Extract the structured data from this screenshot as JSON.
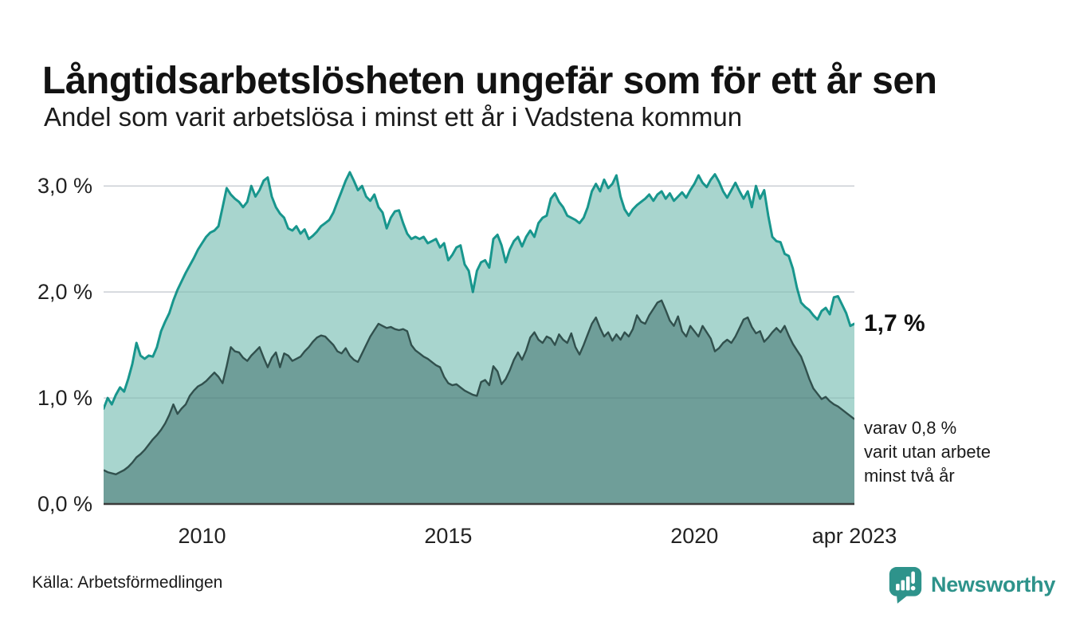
{
  "chart_data": {
    "type": "area",
    "title": "Långtidsarbetslösheten ungefär som för ett år sen",
    "subtitle": "Andel som varit arbetslösa i minst ett år i Vadstena kommun",
    "x_unit": "month",
    "x_start": 2008.0,
    "x_end": 2023.25,
    "y_unit": "%",
    "y_range": [
      0,
      3.25
    ],
    "grid": "horizontal",
    "legend": "none-direct-labels",
    "y_ticks": [
      {
        "label": "0,0 %",
        "value": 0
      },
      {
        "label": "1,0 %",
        "value": 1
      },
      {
        "label": "2,0 %",
        "value": 2
      },
      {
        "label": "3,0 %",
        "value": 3
      }
    ],
    "x_ticks": [
      {
        "label": "2010",
        "value": 2010
      },
      {
        "label": "2015",
        "value": 2015
      },
      {
        "label": "2020",
        "value": 2020
      },
      {
        "label": "apr 2023",
        "value": 2023.25
      }
    ],
    "annotations": {
      "latest_total": "1,7 %",
      "secondary_1": "varav 0,8 %",
      "secondary_2": "varit utan arbete",
      "secondary_3": "minst två år"
    },
    "series": [
      {
        "name": "Andel arbetslösa minst ett år",
        "latest_value": 1.7,
        "line_color": "#18968D",
        "fill_color": "#A8D5CE",
        "line_width": 3,
        "values": [
          0.9,
          1.0,
          0.94,
          1.03,
          1.1,
          1.06,
          1.18,
          1.32,
          1.52,
          1.4,
          1.37,
          1.4,
          1.39,
          1.48,
          1.63,
          1.72,
          1.8,
          1.92,
          2.02,
          2.1,
          2.18,
          2.25,
          2.32,
          2.4,
          2.46,
          2.52,
          2.56,
          2.58,
          2.62,
          2.8,
          2.98,
          2.92,
          2.88,
          2.85,
          2.8,
          2.85,
          3.0,
          2.9,
          2.96,
          3.05,
          3.08,
          2.9,
          2.8,
          2.74,
          2.7,
          2.6,
          2.58,
          2.62,
          2.55,
          2.59,
          2.5,
          2.53,
          2.57,
          2.62,
          2.65,
          2.68,
          2.75,
          2.85,
          2.95,
          3.05,
          3.13,
          3.05,
          2.96,
          3.0,
          2.9,
          2.86,
          2.92,
          2.8,
          2.75,
          2.6,
          2.7,
          2.76,
          2.77,
          2.65,
          2.55,
          2.5,
          2.52,
          2.5,
          2.52,
          2.46,
          2.48,
          2.5,
          2.42,
          2.46,
          2.3,
          2.35,
          2.42,
          2.44,
          2.26,
          2.2,
          2.0,
          2.2,
          2.28,
          2.3,
          2.23,
          2.5,
          2.54,
          2.44,
          2.28,
          2.4,
          2.48,
          2.52,
          2.43,
          2.52,
          2.58,
          2.52,
          2.65,
          2.7,
          2.72,
          2.88,
          2.93,
          2.85,
          2.8,
          2.72,
          2.7,
          2.68,
          2.65,
          2.7,
          2.8,
          2.95,
          3.02,
          2.95,
          3.06,
          2.98,
          3.02,
          3.1,
          2.9,
          2.78,
          2.72,
          2.78,
          2.82,
          2.85,
          2.88,
          2.92,
          2.86,
          2.92,
          2.95,
          2.88,
          2.93,
          2.86,
          2.9,
          2.94,
          2.89,
          2.96,
          3.02,
          3.1,
          3.03,
          2.99,
          3.06,
          3.11,
          3.04,
          2.95,
          2.89,
          2.96,
          3.03,
          2.95,
          2.88,
          2.95,
          2.8,
          3.0,
          2.88,
          2.96,
          2.72,
          2.52,
          2.48,
          2.47,
          2.36,
          2.34,
          2.22,
          2.04,
          1.9,
          1.86,
          1.83,
          1.78,
          1.74,
          1.82,
          1.85,
          1.79,
          1.95,
          1.96,
          1.88,
          1.8,
          1.68,
          1.7
        ]
      },
      {
        "name": "Andel arbetslösa minst två år",
        "latest_value": 0.8,
        "line_color": "#31504D",
        "fill_color": "#6F9E99",
        "line_width": 2.4,
        "values": [
          0.32,
          0.3,
          0.29,
          0.28,
          0.3,
          0.32,
          0.35,
          0.39,
          0.44,
          0.47,
          0.51,
          0.56,
          0.61,
          0.65,
          0.7,
          0.76,
          0.84,
          0.94,
          0.85,
          0.9,
          0.94,
          1.02,
          1.07,
          1.11,
          1.13,
          1.16,
          1.2,
          1.24,
          1.2,
          1.14,
          1.3,
          1.48,
          1.44,
          1.43,
          1.38,
          1.35,
          1.4,
          1.44,
          1.48,
          1.38,
          1.29,
          1.38,
          1.43,
          1.29,
          1.42,
          1.4,
          1.35,
          1.37,
          1.39,
          1.44,
          1.48,
          1.53,
          1.57,
          1.59,
          1.58,
          1.54,
          1.5,
          1.44,
          1.42,
          1.47,
          1.4,
          1.36,
          1.34,
          1.42,
          1.5,
          1.58,
          1.64,
          1.7,
          1.68,
          1.66,
          1.67,
          1.65,
          1.64,
          1.65,
          1.63,
          1.5,
          1.45,
          1.42,
          1.39,
          1.37,
          1.34,
          1.31,
          1.29,
          1.2,
          1.14,
          1.12,
          1.13,
          1.1,
          1.07,
          1.05,
          1.03,
          1.02,
          1.15,
          1.17,
          1.12,
          1.3,
          1.25,
          1.13,
          1.18,
          1.26,
          1.36,
          1.43,
          1.36,
          1.45,
          1.57,
          1.62,
          1.55,
          1.52,
          1.58,
          1.56,
          1.5,
          1.6,
          1.55,
          1.52,
          1.61,
          1.48,
          1.41,
          1.5,
          1.6,
          1.7,
          1.76,
          1.66,
          1.58,
          1.62,
          1.54,
          1.6,
          1.55,
          1.62,
          1.58,
          1.65,
          1.78,
          1.72,
          1.7,
          1.78,
          1.84,
          1.9,
          1.92,
          1.83,
          1.73,
          1.68,
          1.77,
          1.63,
          1.58,
          1.68,
          1.63,
          1.58,
          1.68,
          1.62,
          1.56,
          1.44,
          1.47,
          1.52,
          1.55,
          1.52,
          1.58,
          1.66,
          1.74,
          1.76,
          1.67,
          1.61,
          1.63,
          1.53,
          1.57,
          1.62,
          1.66,
          1.62,
          1.68,
          1.59,
          1.51,
          1.45,
          1.39,
          1.29,
          1.18,
          1.09,
          1.04,
          0.99,
          1.01,
          0.97,
          0.94,
          0.92,
          0.89,
          0.86,
          0.83,
          0.8
        ]
      }
    ]
  },
  "footer": {
    "source": "Källa: Arbetsförmedlingen",
    "brand": "Newsworthy"
  },
  "colors": {
    "grid": "#E2E2E7",
    "grid_overlay": "rgba(45,75,80,0.12)",
    "baseline": "#3B3B3B",
    "brand_teal": "#2E938B",
    "background": "#FFFFFF"
  }
}
